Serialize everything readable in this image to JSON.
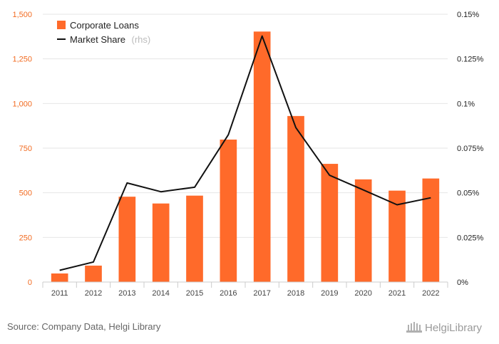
{
  "chart_data": {
    "type": "bar",
    "categories": [
      "2011",
      "2012",
      "2013",
      "2014",
      "2015",
      "2016",
      "2017",
      "2018",
      "2019",
      "2020",
      "2021",
      "2022"
    ],
    "series": [
      {
        "name": "Corporate Loans",
        "type": "bar",
        "axis": "left",
        "color": "#ff6a2a",
        "values": [
          48,
          92,
          478,
          440,
          484,
          798,
          1403,
          930,
          662,
          575,
          512,
          580
        ]
      },
      {
        "name": "Market Share",
        "type": "line",
        "axis": "right",
        "color": "#111111",
        "values": [
          0.0066,
          0.0112,
          0.0555,
          0.0506,
          0.0531,
          0.0825,
          0.1378,
          0.0865,
          0.0598,
          0.0516,
          0.0433,
          0.0472
        ]
      }
    ],
    "ylim_left": [
      0,
      1500
    ],
    "ylim_right": [
      0,
      0.15
    ],
    "yticks_left": [
      "0",
      "250",
      "500",
      "750",
      "1,000",
      "1,250",
      "1,500"
    ],
    "yticks_right": [
      "0%",
      "0.025%",
      "0.05%",
      "0.075%",
      "0.1%",
      "0.125%",
      "0.15%"
    ],
    "grid": true,
    "legend": {
      "placement": "top-left",
      "items": [
        {
          "label": "Corporate Loans",
          "suffix": ""
        },
        {
          "label": "Market Share",
          "suffix": "(rhs)"
        }
      ]
    }
  },
  "footer": {
    "source": "Source: Company Data, Helgi Library",
    "brand": "HelgiLibrary"
  },
  "colors": {
    "bar": "#ff6a2a",
    "line": "#111111",
    "left_axis_text": "#f26b21",
    "grid": "#e6e6e6"
  }
}
